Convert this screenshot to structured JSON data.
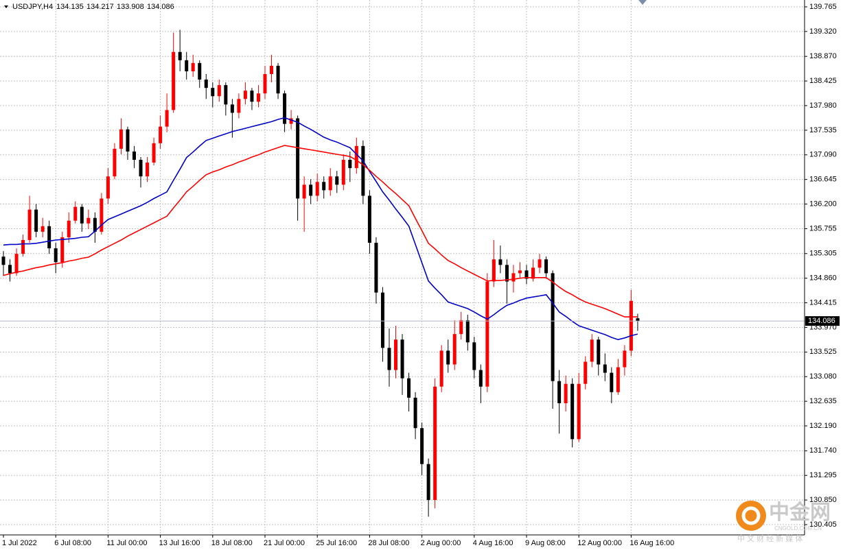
{
  "chart_data": {
    "type": "candlestick",
    "symbol": "USDJPY,H4",
    "ylim": [
      130.219,
      139.889
    ],
    "yticks": [
      139.765,
      {
        "value": 139.32,
        "label": "139.320"
      },
      {
        "value": 138.87,
        "label": "138.870"
      },
      138.425,
      {
        "value": 137.98,
        "label": "137.980"
      },
      137.535,
      {
        "value": 137.09,
        "label": "137.090"
      },
      136.645,
      {
        "value": 136.2,
        "label": "136.200"
      },
      135.755,
      135.305,
      {
        "value": 134.86,
        "label": "134.860"
      },
      134.415,
      {
        "value": 133.97,
        "label": "133.970"
      },
      133.525,
      {
        "value": 133.08,
        "label": "133.080"
      },
      132.635,
      {
        "value": 132.19,
        "label": "132.190"
      },
      {
        "value": 131.74,
        "label": "131.740"
      },
      131.295,
      {
        "value": 130.85,
        "label": "130.850"
      },
      130.405
    ],
    "grid": true,
    "up_color": "#ff0000",
    "down_color": "#000000",
    "categories": [
      "1 Jul 2022",
      null,
      null,
      null,
      null,
      null,
      null,
      null,
      "6 Jul 08:00",
      null,
      null,
      null,
      null,
      null,
      null,
      null,
      "11 Jul 00:00",
      null,
      null,
      null,
      null,
      null,
      null,
      null,
      "13 Jul 16:00",
      null,
      null,
      null,
      null,
      null,
      null,
      null,
      "18 Jul 08:00",
      null,
      null,
      null,
      null,
      null,
      null,
      null,
      "21 Jul 00:00",
      null,
      null,
      null,
      null,
      null,
      null,
      null,
      "25 Jul 16:00",
      null,
      null,
      null,
      null,
      null,
      null,
      null,
      "28 Jul 08:00",
      null,
      null,
      null,
      null,
      null,
      null,
      null,
      "2 Aug 00:00",
      null,
      null,
      null,
      null,
      null,
      null,
      null,
      "4 Aug 16:00",
      null,
      null,
      null,
      null,
      null,
      null,
      null,
      "9 Aug 08:00",
      null,
      null,
      null,
      null,
      null,
      null,
      null,
      "12 Aug 00:00",
      null,
      null,
      null,
      null,
      null,
      null,
      null,
      "16 Aug 16:00",
      null
    ],
    "open": [
      135.25,
      135.1,
      134.95,
      135.3,
      135.55,
      136.1,
      135.7,
      135.8,
      135.4,
      135.15,
      135.6,
      135.9,
      136.15,
      135.85,
      135.95,
      135.7,
      136.3,
      136.7,
      137.2,
      137.55,
      137.15,
      137.0,
      136.7,
      136.95,
      137.3,
      137.6,
      137.9,
      138.95,
      138.8,
      138.6,
      138.75,
      138.45,
      138.3,
      138.15,
      138.35,
      138.0,
      137.85,
      138.1,
      138.25,
      138.05,
      138.2,
      138.55,
      138.7,
      138.2,
      137.65,
      137.75,
      136.3,
      136.55,
      136.35,
      136.6,
      136.45,
      136.7,
      136.55,
      137.0,
      136.85,
      137.25,
      136.35,
      135.5,
      134.6,
      133.6,
      133.2,
      133.75,
      133.05,
      132.7,
      132.15,
      131.5,
      130.85,
      132.9,
      133.55,
      133.3,
      133.85,
      134.1,
      133.7,
      133.2,
      132.9,
      134.8,
      135.2,
      135.1,
      134.8,
      134.95,
      135.0,
      134.85,
      135.05,
      135.2,
      134.95,
      133.0,
      132.6,
      132.95,
      131.95,
      132.95,
      133.35,
      133.75,
      133.3,
      133.15,
      132.8,
      133.25,
      133.55,
      134.135
    ],
    "high": [
      135.35,
      135.2,
      135.4,
      135.65,
      136.35,
      136.2,
      135.95,
      135.9,
      135.5,
      135.7,
      136.05,
      136.25,
      136.2,
      136.1,
      136.05,
      136.4,
      136.85,
      137.3,
      137.75,
      137.6,
      137.25,
      137.05,
      137.05,
      137.4,
      137.8,
      138.2,
      139.3,
      139.35,
      138.95,
      138.9,
      138.8,
      138.55,
      138.4,
      138.45,
      138.4,
      138.1,
      138.2,
      138.4,
      138.3,
      138.35,
      138.7,
      138.9,
      138.75,
      138.25,
      137.9,
      137.8,
      136.7,
      136.65,
      136.75,
      136.7,
      136.85,
      136.8,
      137.1,
      137.15,
      137.4,
      137.35,
      136.45,
      135.6,
      134.7,
      133.95,
      134.0,
      133.85,
      133.15,
      132.8,
      132.25,
      131.6,
      133.05,
      133.65,
      133.75,
      134.1,
      134.25,
      134.2,
      133.8,
      133.3,
      134.95,
      135.55,
      135.45,
      135.2,
      135.1,
      135.15,
      135.1,
      135.2,
      135.3,
      135.25,
      135.0,
      133.2,
      133.1,
      133.05,
      133.15,
      133.45,
      133.85,
      133.8,
      133.5,
      133.25,
      133.4,
      133.65,
      134.65,
      134.217
    ],
    "low": [
      134.9,
      134.8,
      134.9,
      135.25,
      135.5,
      135.6,
      135.6,
      135.3,
      134.95,
      135.05,
      135.5,
      135.85,
      135.7,
      135.75,
      135.5,
      135.65,
      136.2,
      136.65,
      137.1,
      137.0,
      136.85,
      136.5,
      136.6,
      136.9,
      137.2,
      137.5,
      137.85,
      138.6,
      138.45,
      138.5,
      138.3,
      138.1,
      137.95,
      138.05,
      137.8,
      137.4,
      137.75,
      138.0,
      137.9,
      137.95,
      138.1,
      138.4,
      138.1,
      137.5,
      137.55,
      135.9,
      135.7,
      136.2,
      136.25,
      136.3,
      136.35,
      136.4,
      136.45,
      136.6,
      136.75,
      136.2,
      135.3,
      134.4,
      133.35,
      132.9,
      133.05,
      132.75,
      132.45,
      131.95,
      131.3,
      130.55,
      130.7,
      132.8,
      133.15,
      133.2,
      133.75,
      133.55,
      133.05,
      132.6,
      132.8,
      134.7,
      134.95,
      134.4,
      134.6,
      134.85,
      134.75,
      134.8,
      134.95,
      134.85,
      132.5,
      132.05,
      132.45,
      131.8,
      131.9,
      132.85,
      133.25,
      133.1,
      133.0,
      132.6,
      132.75,
      133.1,
      133.45,
      133.908
    ],
    "close": [
      135.1,
      134.95,
      135.3,
      135.55,
      136.1,
      135.7,
      135.8,
      135.4,
      135.15,
      135.6,
      135.9,
      136.15,
      135.85,
      135.95,
      135.7,
      136.3,
      136.7,
      137.2,
      137.55,
      137.15,
      137.0,
      136.7,
      136.95,
      137.3,
      137.6,
      137.9,
      138.95,
      138.8,
      138.6,
      138.75,
      138.45,
      138.3,
      138.15,
      138.35,
      138.0,
      137.85,
      138.1,
      138.25,
      138.05,
      138.2,
      138.55,
      138.7,
      138.2,
      137.65,
      137.75,
      136.3,
      136.55,
      136.35,
      136.6,
      136.45,
      136.7,
      136.55,
      137.0,
      136.85,
      137.25,
      136.35,
      135.5,
      134.6,
      133.6,
      133.2,
      133.75,
      133.05,
      132.7,
      132.15,
      131.5,
      130.85,
      132.9,
      133.55,
      133.3,
      133.85,
      134.1,
      133.7,
      133.2,
      132.9,
      134.8,
      135.2,
      135.1,
      134.8,
      134.95,
      135.0,
      134.85,
      135.05,
      135.2,
      134.95,
      133.0,
      132.6,
      132.95,
      131.95,
      132.95,
      133.35,
      133.75,
      133.3,
      133.15,
      132.8,
      133.25,
      133.55,
      134.45,
      134.086
    ],
    "moving_averages": [
      {
        "color": "#0000c8",
        "values": [
          135.46,
          135.47,
          135.47,
          135.48,
          135.48,
          135.49,
          135.51,
          135.53,
          135.55,
          135.56,
          135.57,
          135.58,
          135.6,
          135.61,
          135.71,
          135.82,
          135.92,
          135.97,
          136.02,
          136.07,
          136.12,
          136.17,
          136.23,
          136.3,
          136.36,
          136.42,
          136.63,
          136.83,
          137.04,
          137.14,
          137.25,
          137.35,
          137.39,
          137.43,
          137.47,
          137.51,
          137.54,
          137.57,
          137.6,
          137.63,
          137.66,
          137.69,
          137.73,
          137.76,
          137.72,
          137.68,
          137.61,
          137.55,
          137.48,
          137.41,
          137.36,
          137.32,
          137.27,
          137.22,
          137.1,
          136.98,
          136.79,
          136.61,
          136.42,
          136.27,
          136.11,
          135.96,
          135.8,
          135.47,
          135.14,
          134.81,
          134.68,
          134.56,
          134.43,
          134.39,
          134.35,
          134.31,
          134.25,
          134.18,
          134.12,
          134.2,
          134.29,
          134.37,
          134.41,
          134.46,
          134.5,
          134.52,
          134.54,
          134.56,
          134.41,
          134.25,
          134.17,
          134.08,
          134.0,
          133.96,
          133.92,
          133.88,
          133.84,
          133.79,
          133.75,
          133.78,
          133.82,
          133.85
        ]
      },
      {
        "color": "#ff0000",
        "values": [
          134.91,
          134.94,
          134.97,
          134.99,
          135.02,
          135.05,
          135.07,
          135.1,
          135.12,
          135.14,
          135.17,
          135.19,
          135.22,
          135.24,
          135.3,
          135.37,
          135.43,
          135.49,
          135.55,
          135.62,
          135.68,
          135.74,
          135.8,
          135.86,
          135.92,
          135.98,
          136.13,
          136.27,
          136.42,
          136.52,
          136.63,
          136.73,
          136.78,
          136.82,
          136.87,
          136.91,
          136.96,
          137.0,
          137.05,
          137.09,
          137.14,
          137.18,
          137.22,
          137.26,
          137.24,
          137.22,
          137.2,
          137.18,
          137.16,
          137.14,
          137.12,
          137.1,
          137.08,
          137.06,
          136.99,
          136.91,
          136.81,
          136.7,
          136.6,
          136.49,
          136.39,
          136.28,
          136.17,
          135.94,
          135.72,
          135.49,
          135.39,
          135.28,
          135.18,
          135.12,
          135.05,
          134.99,
          134.93,
          134.87,
          134.81,
          134.82,
          134.82,
          134.83,
          134.84,
          134.86,
          134.87,
          134.87,
          134.87,
          134.87,
          134.79,
          134.7,
          134.62,
          134.56,
          134.49,
          134.43,
          134.39,
          134.35,
          134.31,
          134.26,
          134.21,
          134.16,
          134.16,
          134.16
        ]
      }
    ],
    "watermark": {
      "brand": "中金网",
      "domain": "CNGOLD.COM.CN",
      "slogan": "中 文 财 经 新 媒 体"
    }
  }
}
